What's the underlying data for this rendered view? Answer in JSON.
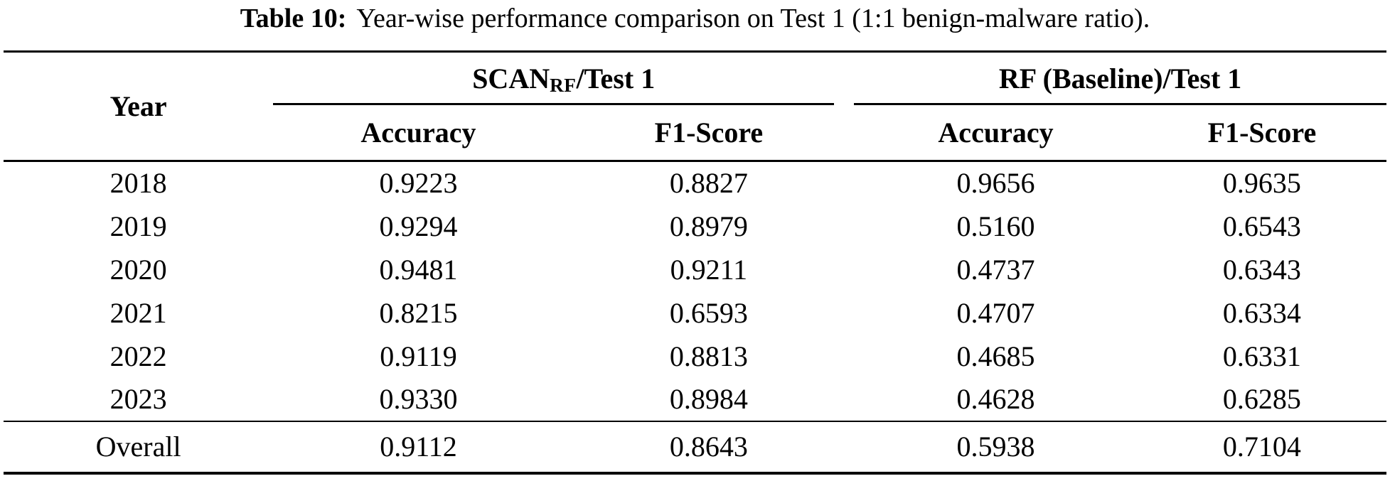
{
  "caption": {
    "label": "Table 10:",
    "text": "Year-wise performance comparison on Test 1 (1:1 benign-malware ratio)."
  },
  "table": {
    "col_year": "Year",
    "group_scan": {
      "main": "SCAN",
      "sub": "RF",
      "suffix": "/Test 1"
    },
    "group_rf": {
      "label": "RF (Baseline)/Test 1"
    },
    "subheaders": {
      "scan_accuracy": "Accuracy",
      "scan_f1": "F1-Score",
      "rf_accuracy": "Accuracy",
      "rf_f1": "F1-Score"
    },
    "rows": [
      {
        "year": "2018",
        "scan_acc": "0.9223",
        "scan_f1": "0.8827",
        "rf_acc": "0.9656",
        "rf_f1": "0.9635"
      },
      {
        "year": "2019",
        "scan_acc": "0.9294",
        "scan_f1": "0.8979",
        "rf_acc": "0.5160",
        "rf_f1": "0.6543"
      },
      {
        "year": "2020",
        "scan_acc": "0.9481",
        "scan_f1": "0.9211",
        "rf_acc": "0.4737",
        "rf_f1": "0.6343"
      },
      {
        "year": "2021",
        "scan_acc": "0.8215",
        "scan_f1": "0.6593",
        "rf_acc": "0.4707",
        "rf_f1": "0.6334"
      },
      {
        "year": "2022",
        "scan_acc": "0.9119",
        "scan_f1": "0.8813",
        "rf_acc": "0.4685",
        "rf_f1": "0.6331"
      },
      {
        "year": "2023",
        "scan_acc": "0.9330",
        "scan_f1": "0.8984",
        "rf_acc": "0.4628",
        "rf_f1": "0.6285"
      }
    ],
    "overall": {
      "label": "Overall",
      "scan_acc": "0.9112",
      "scan_f1": "0.8643",
      "rf_acc": "0.5938",
      "rf_f1": "0.7104"
    }
  },
  "colors": {
    "text": "#000000",
    "rules": "#000000",
    "background": "#ffffff"
  }
}
